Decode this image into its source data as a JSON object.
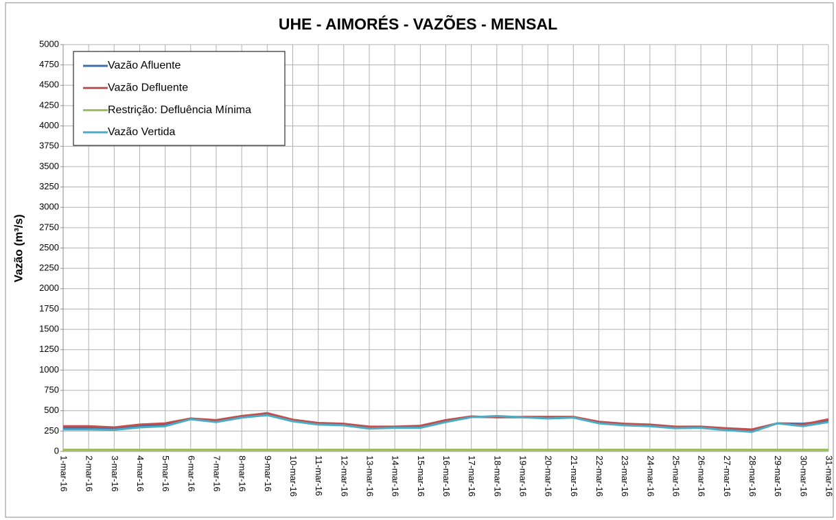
{
  "chart_data": {
    "type": "line",
    "title": "UHE - AIMORÉS - VAZÕES -  MENSAL",
    "y_label": "Vazão (m³/s)",
    "categories": [
      "1-mar-16",
      "2-mar-16",
      "3-mar-16",
      "4-mar-16",
      "5-mar-16",
      "6-mar-16",
      "7-mar-16",
      "8-mar-16",
      "9-mar-16",
      "10-mar-16",
      "11-mar-16",
      "12-mar-16",
      "13-mar-16",
      "14-mar-16",
      "15-mar-16",
      "16-mar-16",
      "17-mar-16",
      "18-mar-16",
      "19-mar-16",
      "20-mar-16",
      "21-mar-16",
      "22-mar-16",
      "23-mar-16",
      "24-mar-16",
      "25-mar-16",
      "26-mar-16",
      "27-mar-16",
      "28-mar-16",
      "29-mar-16",
      "30-mar-16",
      "31-mar-16"
    ],
    "series": [
      {
        "name": "Vazão Afluente",
        "color": "#3a6ea8",
        "values": [
          295,
          295,
          285,
          310,
          325,
          400,
          375,
          425,
          455,
          380,
          345,
          330,
          295,
          300,
          305,
          375,
          425,
          420,
          420,
          415,
          420,
          355,
          330,
          320,
          295,
          300,
          275,
          260,
          345,
          340,
          375
        ]
      },
      {
        "name": "Vazão Defluente",
        "color": "#c0504d",
        "values": [
          310,
          310,
          295,
          330,
          345,
          405,
          385,
          435,
          470,
          390,
          350,
          340,
          305,
          305,
          315,
          385,
          430,
          420,
          425,
          425,
          425,
          365,
          340,
          330,
          305,
          305,
          285,
          270,
          345,
          330,
          395
        ]
      },
      {
        "name": "Restrição: Defluência Mínima",
        "color": "#9bbb59",
        "values": [
          20,
          20,
          20,
          20,
          20,
          20,
          20,
          20,
          20,
          20,
          20,
          20,
          20,
          20,
          20,
          20,
          20,
          20,
          20,
          20,
          20,
          20,
          20,
          20,
          20,
          20,
          20,
          20,
          20,
          20,
          20
        ]
      },
      {
        "name": "Vazão Vertida",
        "color": "#4bacc6",
        "values": [
          270,
          270,
          265,
          295,
          310,
          395,
          360,
          415,
          445,
          370,
          330,
          320,
          280,
          290,
          290,
          360,
          420,
          435,
          420,
          405,
          415,
          345,
          320,
          310,
          285,
          290,
          260,
          240,
          345,
          310,
          360
        ]
      }
    ],
    "ylim": [
      0,
      5000
    ],
    "yticks": [
      0,
      250,
      500,
      750,
      1000,
      1250,
      1500,
      1750,
      2000,
      2250,
      2500,
      2750,
      3000,
      3250,
      3500,
      3750,
      4000,
      4250,
      4500,
      4750,
      5000
    ],
    "grid": true,
    "legend": "upper-left"
  }
}
